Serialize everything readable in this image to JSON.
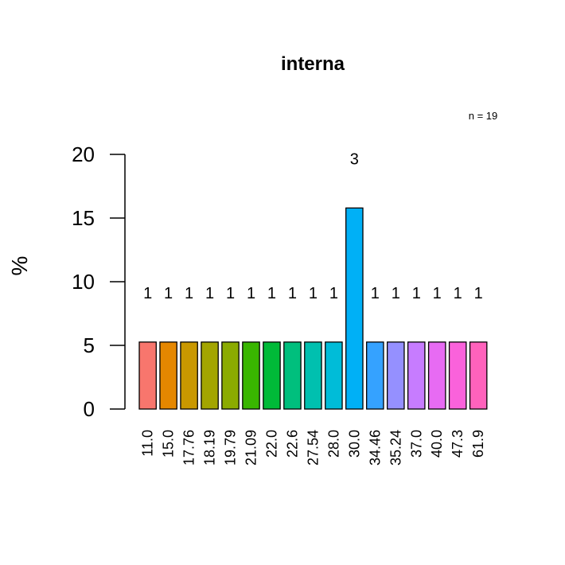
{
  "chart_data": {
    "type": "bar",
    "title": "interna",
    "ylabel": "%",
    "xlabel": "",
    "annotation": "n = 19",
    "ylim": [
      0,
      20
    ],
    "yticks": [
      0,
      5,
      10,
      15,
      20
    ],
    "categories": [
      "11.0",
      "15.0",
      "17.76",
      "18.19",
      "19.79",
      "21.09",
      "22.0",
      "22.6",
      "27.54",
      "28.0",
      "30.0",
      "34.46",
      "35.24",
      "37.0",
      "40.0",
      "47.3",
      "61.9"
    ],
    "values": [
      5.26,
      5.26,
      5.26,
      5.26,
      5.26,
      5.26,
      5.26,
      5.26,
      5.26,
      5.26,
      15.79,
      5.26,
      5.26,
      5.26,
      5.26,
      5.26,
      5.26
    ],
    "counts": [
      "1",
      "1",
      "1",
      "1",
      "1",
      "1",
      "1",
      "1",
      "1",
      "1",
      "3",
      "1",
      "1",
      "1",
      "1",
      "1",
      "1"
    ],
    "colors": [
      "#F8766D",
      "#E58700",
      "#C99800",
      "#A3A500",
      "#8BAB00",
      "#39B600",
      "#00BA38",
      "#00BF7D",
      "#00C0AF",
      "#00BCD8",
      "#00B0F6",
      "#35A2FF",
      "#9590FF",
      "#C77CFF",
      "#E76BF3",
      "#FA62DB",
      "#FF62BC"
    ]
  }
}
